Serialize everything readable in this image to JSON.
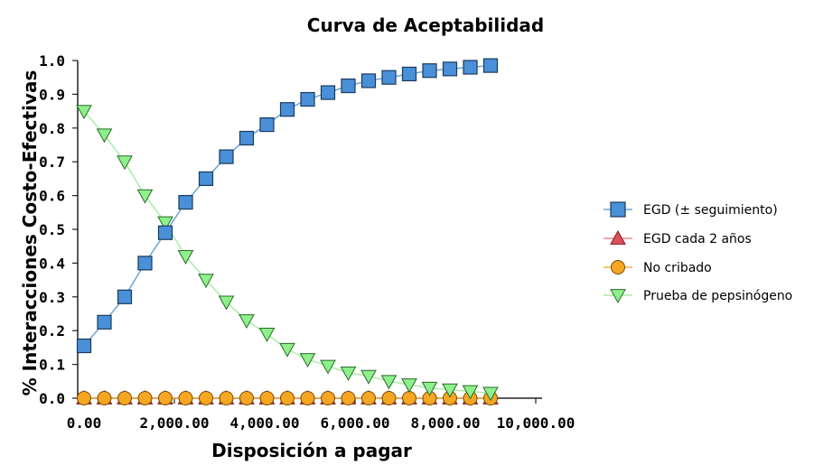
{
  "chart_data": {
    "type": "line",
    "title": "Curva de Aceptabilidad",
    "xlabel": "Disposición a pagar",
    "ylabel": "% Interacciones Costo-Efectivas",
    "xlim": [
      0,
      10000
    ],
    "ylim": [
      0,
      1.0
    ],
    "x_ticks": [
      "0.00",
      "2,000.00",
      "4,000.00",
      "6,000.00",
      "8,000.00",
      "10,000.00"
    ],
    "y_ticks": [
      "0.0",
      "0.1",
      "0.2",
      "0.3",
      "0.4",
      "0.5",
      "0.6",
      "0.7",
      "0.8",
      "0.9",
      "1.0"
    ],
    "grid": false,
    "legend_position": "right",
    "x": [
      0,
      450,
      900,
      1350,
      1800,
      2250,
      2700,
      3150,
      3600,
      4050,
      4500,
      4950,
      5400,
      5850,
      6300,
      6750,
      7200,
      7650,
      8100,
      8550,
      9000
    ],
    "series": [
      {
        "name": "EGD (± seguimiento)",
        "marker": "square",
        "color": "#4a90d9",
        "line_color": "#6aa6d8",
        "values": [
          0.155,
          0.225,
          0.3,
          0.4,
          0.49,
          0.58,
          0.65,
          0.715,
          0.77,
          0.81,
          0.855,
          0.885,
          0.905,
          0.925,
          0.94,
          0.95,
          0.96,
          0.97,
          0.975,
          0.98,
          0.985
        ]
      },
      {
        "name": "EGD cada 2 años",
        "marker": "triangle-up",
        "color": "#e0505a",
        "line_color": "#f08a90",
        "values": [
          0,
          0,
          0,
          0,
          0,
          0,
          0,
          0,
          0,
          0,
          0,
          0,
          0,
          0,
          0,
          0,
          0,
          0,
          0,
          0,
          0
        ]
      },
      {
        "name": "No cribado",
        "marker": "circle",
        "color": "#f5a623",
        "line_color": "#f5b04a",
        "values": [
          0,
          0,
          0,
          0,
          0,
          0,
          0,
          0,
          0,
          0,
          0,
          0,
          0,
          0,
          0,
          0,
          0,
          0,
          0,
          0,
          0
        ]
      },
      {
        "name": "Prueba de pepsinógeno",
        "marker": "triangle-down",
        "color": "#8ef08a",
        "line_color": "#a8eea4",
        "values": [
          0.85,
          0.78,
          0.7,
          0.6,
          0.52,
          0.42,
          0.35,
          0.285,
          0.23,
          0.19,
          0.145,
          0.115,
          0.095,
          0.075,
          0.065,
          0.05,
          0.04,
          0.03,
          0.025,
          0.02,
          0.015
        ]
      }
    ]
  }
}
